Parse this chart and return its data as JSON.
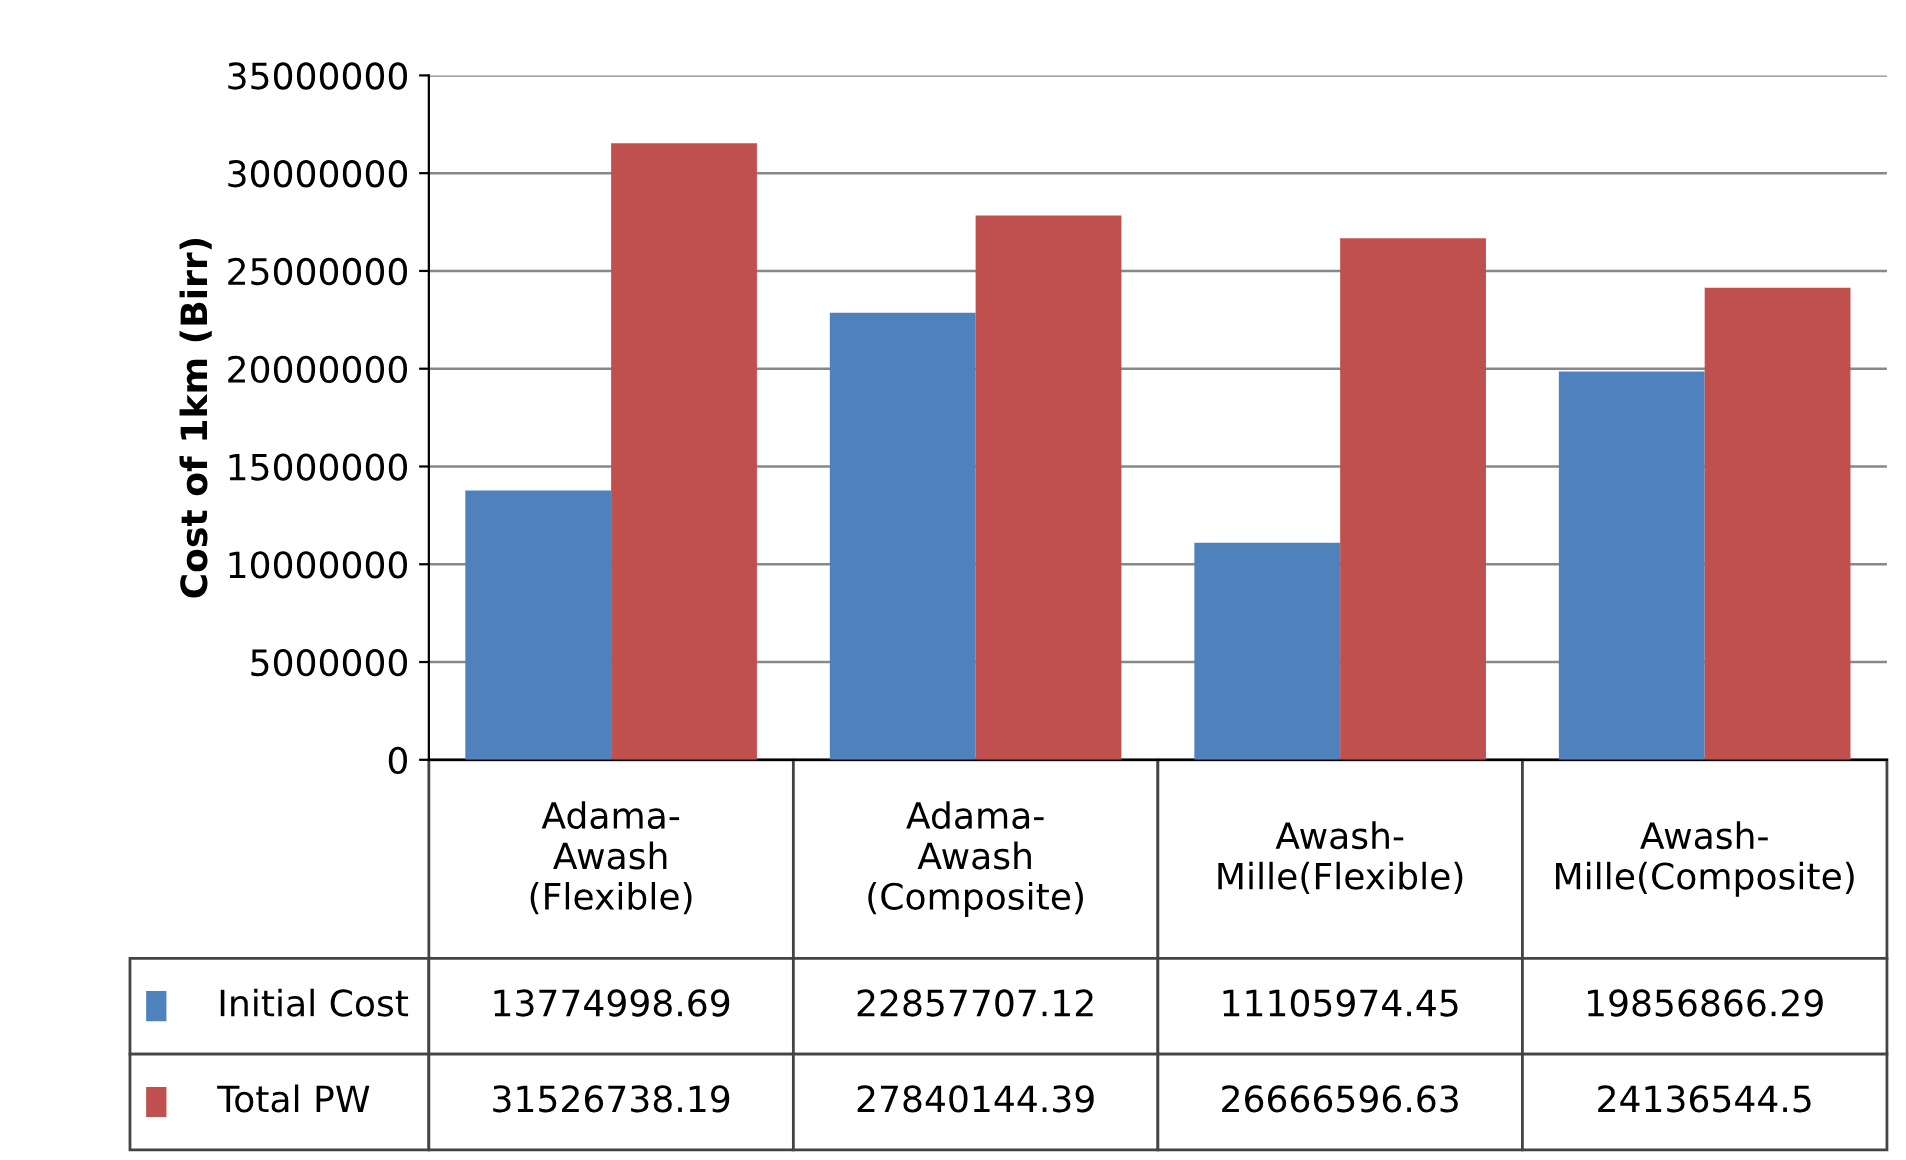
{
  "chart_data": {
    "type": "bar",
    "ylabel": "Cost of 1km (Birr)",
    "categories": [
      "Adama-Awash (Flexible)",
      "Adama-Awash (Composite)",
      "Awash-Mille(Flexible)",
      "Awash-Mille(Composite)"
    ],
    "series": [
      {
        "name": "Initial Cost",
        "color": "#4f81bd",
        "values": [
          13774998.69,
          22857707.12,
          11105974.45,
          19856866.29
        ]
      },
      {
        "name": "Total PW",
        "color": "#c0504d",
        "values": [
          31526738.19,
          27840144.39,
          26666596.63,
          24136544.5
        ]
      }
    ],
    "ylim": [
      0,
      35000000
    ],
    "yticks": [
      0,
      5000000,
      10000000,
      15000000,
      20000000,
      25000000,
      30000000,
      35000000
    ],
    "grid": "y",
    "data_labels": true,
    "legend": "bottom left"
  }
}
